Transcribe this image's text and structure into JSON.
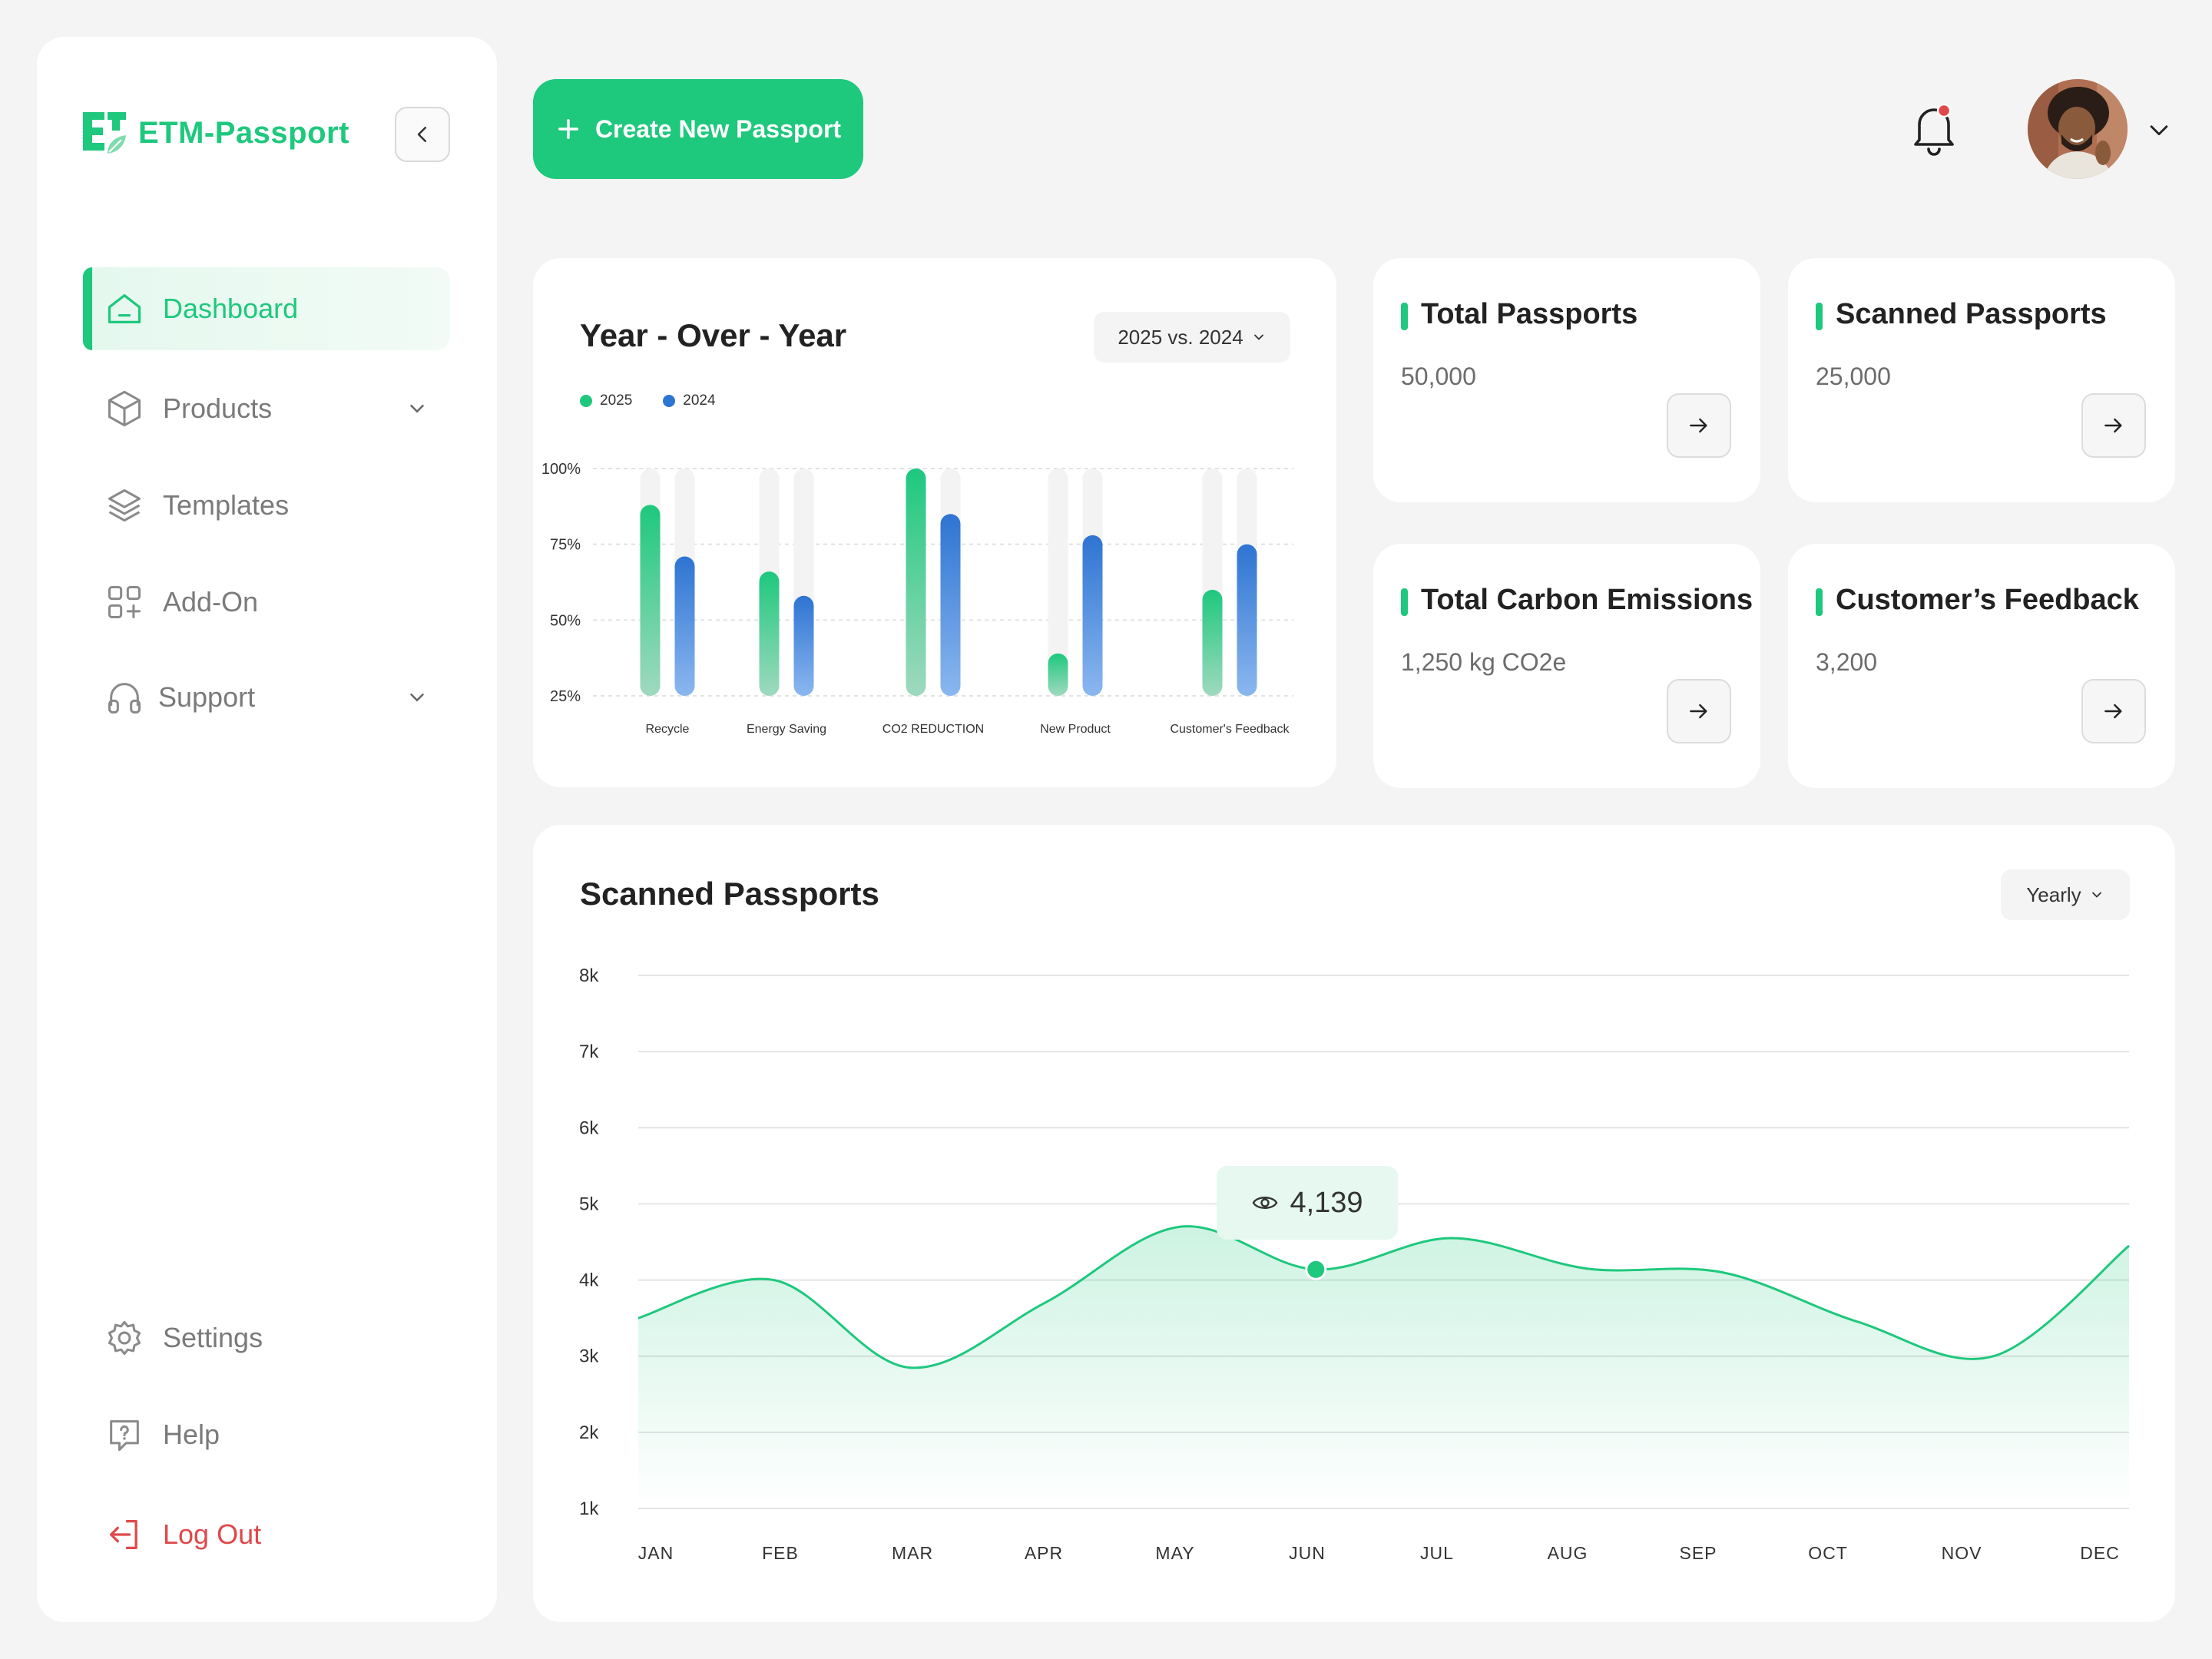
{
  "app": {
    "name": "ETM-Passport"
  },
  "sidebar": {
    "items": [
      {
        "label": "Dashboard",
        "icon": "home-icon",
        "active": true
      },
      {
        "label": "Products",
        "icon": "box-icon",
        "has_submenu": true
      },
      {
        "label": "Templates",
        "icon": "layers-icon"
      },
      {
        "label": "Add-On",
        "icon": "grid-plus-icon"
      },
      {
        "label": "Support",
        "icon": "headphones-icon",
        "has_submenu": true
      }
    ],
    "bottom": [
      {
        "label": "Settings",
        "icon": "gear-icon"
      },
      {
        "label": "Help",
        "icon": "help-chat-icon"
      },
      {
        "label": "Log Out",
        "icon": "logout-icon"
      }
    ]
  },
  "header": {
    "create_label": "Create New Passport",
    "notification_dot": true
  },
  "yoy": {
    "title": "Year - Over - Year",
    "compare_label": "2025 vs. 2024",
    "legend": [
      "2025",
      "2024"
    ]
  },
  "stats": [
    {
      "title": "Total Passports",
      "value": "50,000"
    },
    {
      "title": "Scanned Passports",
      "value": "25,000"
    },
    {
      "title": "Total Carbon Emissions",
      "value": "1,250 kg CO2e"
    },
    {
      "title": "Customer’s Feedback",
      "value": "3,200"
    }
  ],
  "scanned": {
    "title": "Scanned Passports",
    "period_label": "Yearly",
    "tooltip_value": "4,139"
  },
  "colors": {
    "accent": "#1ec87d",
    "blue": "#2e74d2",
    "logout": "#e0484a"
  },
  "chart_data": [
    {
      "type": "bar",
      "title": "Year - Over - Year",
      "categories": [
        "Recycle",
        "Energy Saving",
        "CO2 REDUCTION",
        "New Product",
        "Customer's Feedback"
      ],
      "series": [
        {
          "name": "2025",
          "values": [
            82,
            60,
            97,
            33,
            54
          ]
        },
        {
          "name": "2024",
          "values": [
            65,
            52,
            79,
            72,
            69
          ]
        }
      ],
      "y_ticks": [
        "100%",
        "75%",
        "50%",
        "25%"
      ],
      "ylim": [
        25,
        100
      ]
    },
    {
      "type": "area",
      "title": "Scanned Passports",
      "categories": [
        "JAN",
        "FEB",
        "MAR",
        "APR",
        "MAY",
        "JUN",
        "JUL",
        "AUG",
        "SEP",
        "OCT",
        "NOV",
        "DEC"
      ],
      "values": [
        3500,
        4000,
        2850,
        3700,
        4700,
        4139,
        4550,
        4150,
        4100,
        3450,
        3000,
        4450
      ],
      "y_ticks": [
        "8k",
        "7k",
        "6k",
        "5k",
        "4k",
        "3k",
        "2k",
        "1k"
      ],
      "ylim": [
        1000,
        8000
      ],
      "highlight": "JUN"
    }
  ]
}
